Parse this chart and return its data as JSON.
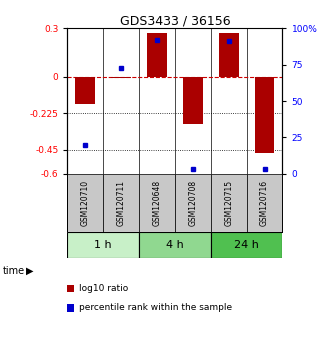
{
  "title": "GDS3433 / 36156",
  "samples": [
    "GSM120710",
    "GSM120711",
    "GSM120648",
    "GSM120708",
    "GSM120715",
    "GSM120716"
  ],
  "log10_ratio": [
    -0.17,
    -0.01,
    0.27,
    -0.29,
    0.27,
    -0.47
  ],
  "percentile_rank": [
    20,
    73,
    92,
    3,
    91,
    3
  ],
  "groups": [
    {
      "label": "1 h",
      "indices": [
        0,
        1
      ],
      "color": "#c8f0c8"
    },
    {
      "label": "4 h",
      "indices": [
        2,
        3
      ],
      "color": "#90d890"
    },
    {
      "label": "24 h",
      "indices": [
        4,
        5
      ],
      "color": "#50c050"
    }
  ],
  "ylim_left": [
    -0.6,
    0.3
  ],
  "ylim_right": [
    0,
    100
  ],
  "yticks_left": [
    0.3,
    0,
    -0.225,
    -0.45,
    -0.6
  ],
  "yticks_right": [
    100,
    75,
    50,
    25,
    0
  ],
  "hlines": [
    -0.225,
    -0.45
  ],
  "bar_color": "#aa0000",
  "dot_color": "#0000cc",
  "zero_line_color": "#cc0000",
  "background_color": "#ffffff",
  "bar_width": 0.55,
  "figsize": [
    3.21,
    3.54
  ],
  "dpi": 100,
  "cell_bg": "#c8c8c8",
  "legend_items": [
    {
      "color": "#aa0000",
      "label": "log10 ratio"
    },
    {
      "color": "#0000cc",
      "label": "percentile rank within the sample"
    }
  ]
}
